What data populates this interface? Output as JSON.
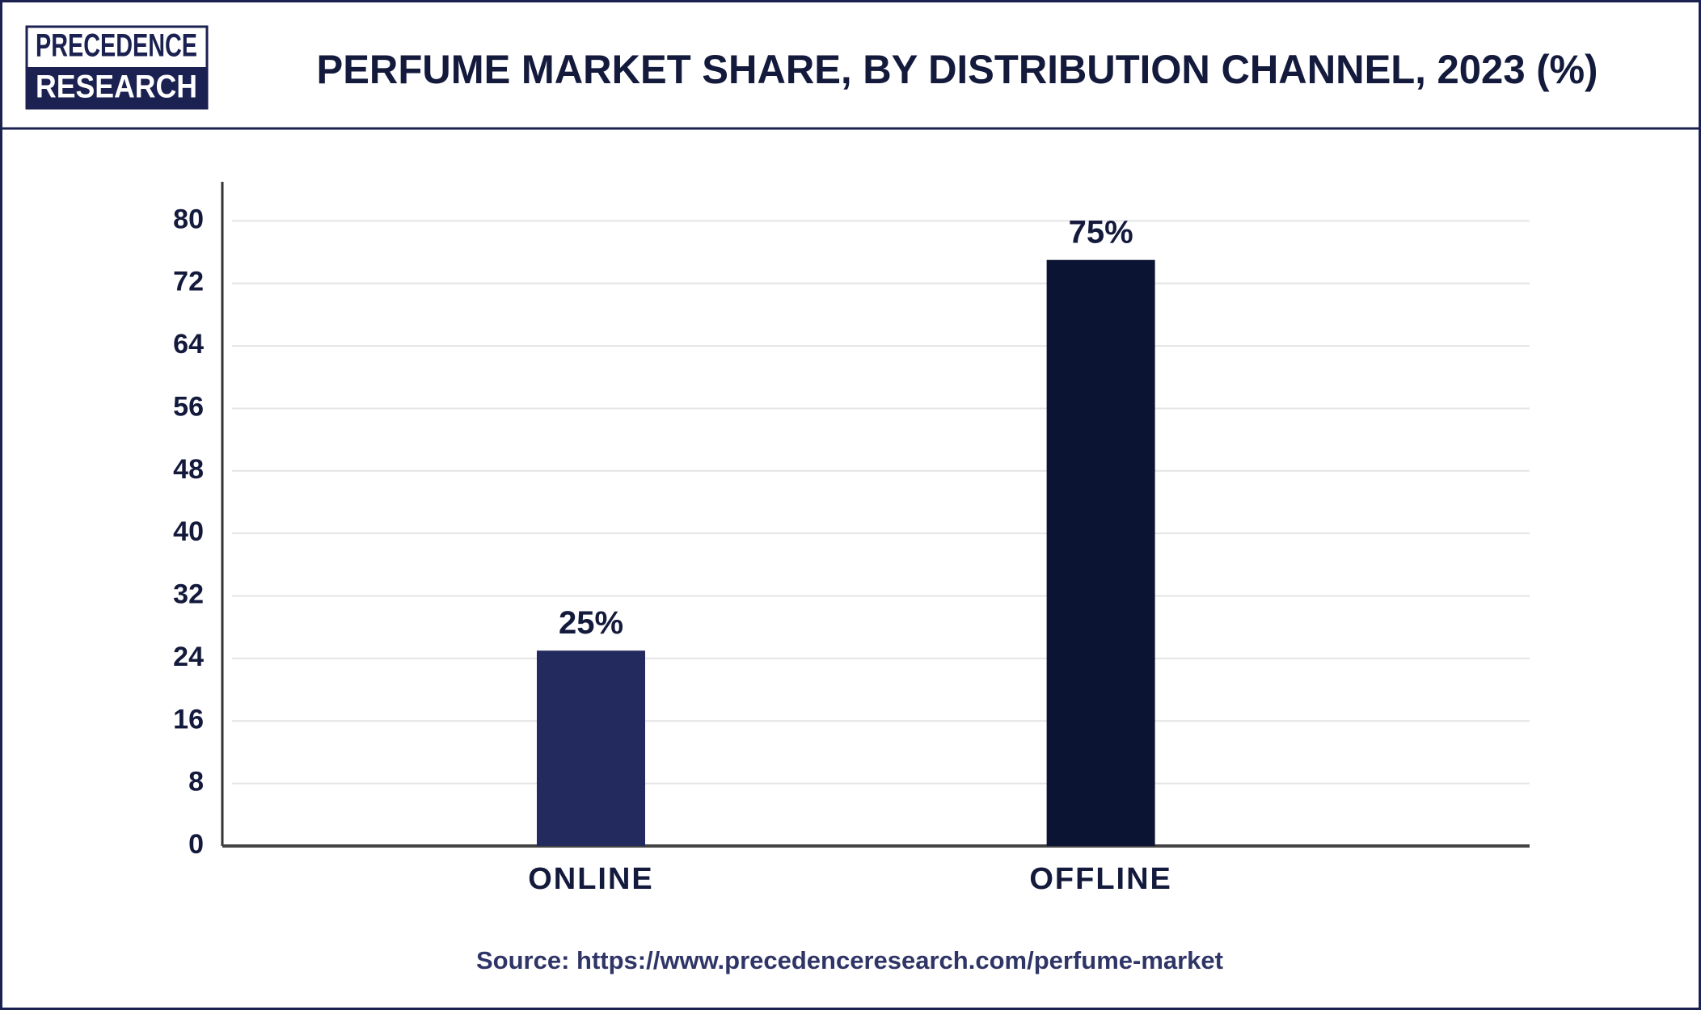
{
  "logo": {
    "line1": "PRECEDENCE",
    "line2": "RESEARCH"
  },
  "chart_data": {
    "type": "bar",
    "title": "PERFUME MARKET SHARE, BY DISTRIBUTION CHANNEL, 2023 (%)",
    "categories": [
      "ONLINE",
      "OFFLINE"
    ],
    "values": [
      25,
      75
    ],
    "value_labels": [
      "25%",
      "75%"
    ],
    "colors": [
      "#232a5e",
      "#0c1433"
    ],
    "ylim": [
      0,
      85
    ],
    "yticks": [
      0,
      8,
      16,
      24,
      32,
      40,
      48,
      56,
      64,
      72,
      80
    ],
    "grid": true,
    "source": "Source: https://www.precedenceresearch.com/perfume-market"
  }
}
